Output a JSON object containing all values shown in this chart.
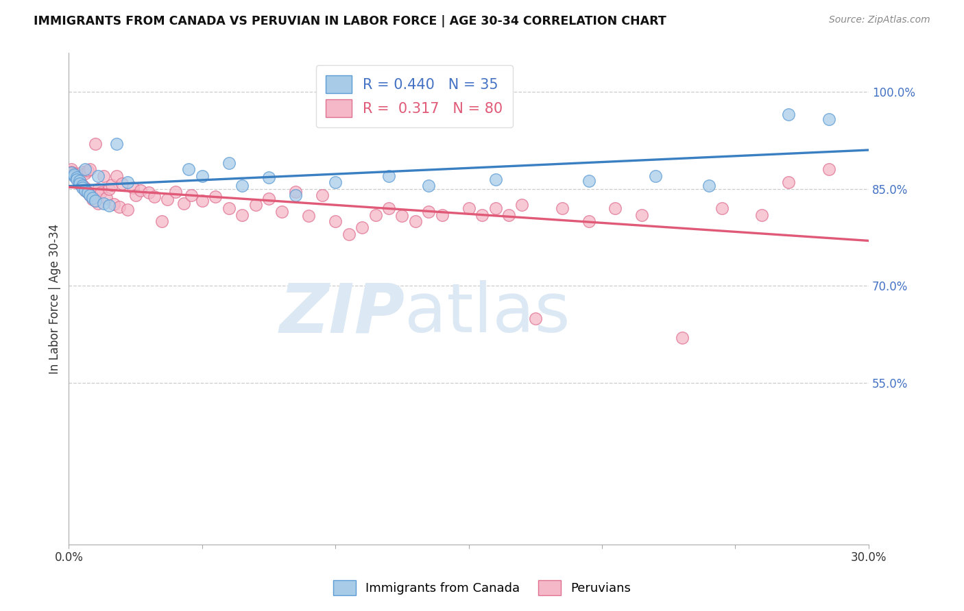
{
  "title": "IMMIGRANTS FROM CANADA VS PERUVIAN IN LABOR FORCE | AGE 30-34 CORRELATION CHART",
  "source_text": "Source: ZipAtlas.com",
  "ylabel": "In Labor Force | Age 30-34",
  "ytick_labels": [
    "100.0%",
    "85.0%",
    "70.0%",
    "55.0%"
  ],
  "ytick_values": [
    1.0,
    0.85,
    0.7,
    0.55
  ],
  "xmin": 0.0,
  "xmax": 0.3,
  "ymin": 0.3,
  "ymax": 1.06,
  "canada_R": 0.44,
  "canada_N": 35,
  "peru_R": 0.317,
  "peru_N": 80,
  "canada_color": "#a8cce8",
  "peru_color": "#f4b8c8",
  "canada_edge_color": "#5b9bd5",
  "peru_edge_color": "#e07090",
  "canada_line_color": "#3a7fc1",
  "peru_line_color": "#e05a78",
  "watermark_zip": "ZIP",
  "watermark_atlas": "atlas",
  "watermark_color": "#dce9f5",
  "background_color": "#ffffff",
  "canada_scatter_x": [
    0.001,
    0.002,
    0.002,
    0.003,
    0.003,
    0.004,
    0.004,
    0.005,
    0.005,
    0.006,
    0.006,
    0.007,
    0.008,
    0.009,
    0.01,
    0.011,
    0.013,
    0.015,
    0.018,
    0.022,
    0.045,
    0.05,
    0.06,
    0.065,
    0.075,
    0.085,
    0.1,
    0.12,
    0.135,
    0.16,
    0.195,
    0.22,
    0.24,
    0.27,
    0.285
  ],
  "canada_scatter_y": [
    0.875,
    0.87,
    0.872,
    0.868,
    0.865,
    0.862,
    0.858,
    0.855,
    0.852,
    0.88,
    0.848,
    0.844,
    0.84,
    0.836,
    0.832,
    0.87,
    0.828,
    0.824,
    0.92,
    0.86,
    0.88,
    0.87,
    0.89,
    0.855,
    0.868,
    0.84,
    0.86,
    0.87,
    0.855,
    0.865,
    0.862,
    0.87,
    0.855,
    0.965,
    0.958
  ],
  "peru_scatter_x": [
    0.001,
    0.001,
    0.002,
    0.002,
    0.003,
    0.003,
    0.003,
    0.004,
    0.004,
    0.004,
    0.005,
    0.005,
    0.005,
    0.006,
    0.006,
    0.006,
    0.007,
    0.007,
    0.008,
    0.008,
    0.009,
    0.009,
    0.01,
    0.01,
    0.011,
    0.011,
    0.012,
    0.013,
    0.014,
    0.015,
    0.016,
    0.017,
    0.018,
    0.019,
    0.02,
    0.022,
    0.024,
    0.025,
    0.027,
    0.03,
    0.032,
    0.035,
    0.037,
    0.04,
    0.043,
    0.046,
    0.05,
    0.055,
    0.06,
    0.065,
    0.07,
    0.075,
    0.08,
    0.085,
    0.09,
    0.095,
    0.1,
    0.105,
    0.11,
    0.115,
    0.12,
    0.125,
    0.13,
    0.135,
    0.14,
    0.15,
    0.155,
    0.16,
    0.165,
    0.17,
    0.175,
    0.185,
    0.195,
    0.205,
    0.215,
    0.23,
    0.245,
    0.26,
    0.27,
    0.285
  ],
  "peru_scatter_y": [
    0.88,
    0.876,
    0.874,
    0.872,
    0.87,
    0.868,
    0.866,
    0.864,
    0.862,
    0.858,
    0.876,
    0.856,
    0.854,
    0.874,
    0.852,
    0.848,
    0.878,
    0.844,
    0.88,
    0.84,
    0.838,
    0.834,
    0.832,
    0.92,
    0.828,
    0.85,
    0.844,
    0.87,
    0.836,
    0.85,
    0.856,
    0.826,
    0.87,
    0.822,
    0.858,
    0.818,
    0.852,
    0.84,
    0.848,
    0.844,
    0.838,
    0.8,
    0.834,
    0.845,
    0.828,
    0.84,
    0.832,
    0.838,
    0.82,
    0.81,
    0.825,
    0.835,
    0.815,
    0.845,
    0.808,
    0.84,
    0.8,
    0.78,
    0.79,
    0.81,
    0.82,
    0.808,
    0.8,
    0.815,
    0.81,
    0.82,
    0.81,
    0.82,
    0.81,
    0.825,
    0.65,
    0.82,
    0.8,
    0.82,
    0.81,
    0.62,
    0.82,
    0.81,
    0.86,
    0.88
  ]
}
